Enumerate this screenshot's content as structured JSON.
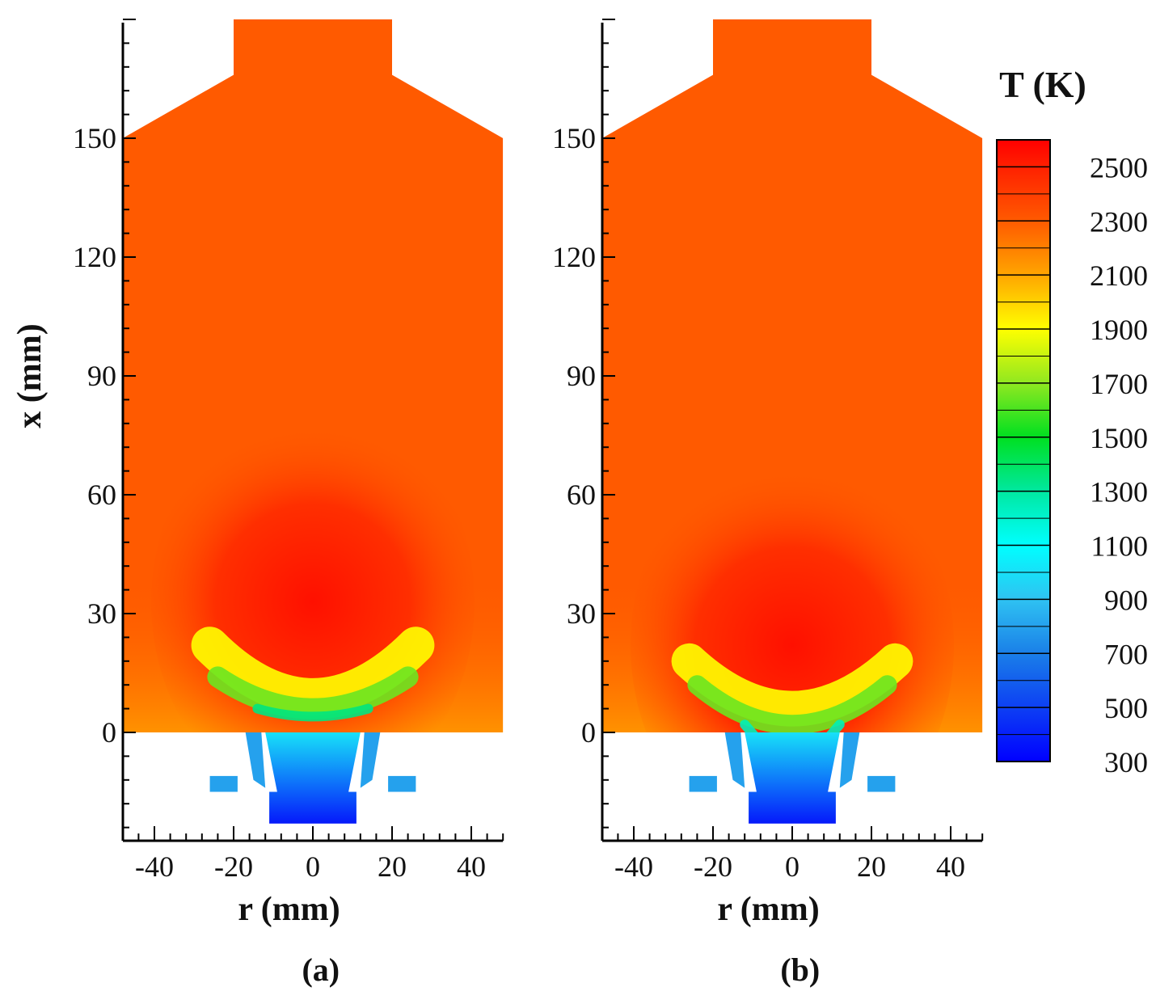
{
  "chart_data": {
    "type": "heatmap",
    "description_kind": "temperature contour, two panels",
    "colorbar": {
      "title": "T (K)",
      "range": [
        300,
        2600
      ],
      "levels": [
        "2500",
        "2300",
        "2100",
        "1900",
        "1700",
        "1500",
        "1300",
        "1100",
        "900",
        "700",
        "500",
        "300"
      ],
      "colors": [
        {
          "value": 300,
          "color": "#0000ff"
        },
        {
          "value": 700,
          "color": "#1a7fe8"
        },
        {
          "value": 900,
          "color": "#2fc2f2"
        },
        {
          "value": 1100,
          "color": "#00ffff"
        },
        {
          "value": 1300,
          "color": "#00e8a0"
        },
        {
          "value": 1500,
          "color": "#00e020"
        },
        {
          "value": 1700,
          "color": "#90e820"
        },
        {
          "value": 1900,
          "color": "#ffff00"
        },
        {
          "value": 2100,
          "color": "#ffa500"
        },
        {
          "value": 2300,
          "color": "#ff5a00"
        },
        {
          "value": 2500,
          "color": "#ff2000"
        },
        {
          "value": 2600,
          "color": "#ff0000"
        }
      ]
    },
    "panels": [
      {
        "label": "(a)",
        "xlabel": "r (mm)",
        "ylabel": "x (mm)",
        "xticks": [
          "-40",
          "-20",
          "0",
          "20",
          "40"
        ],
        "yticks": [
          "0",
          "30",
          "60",
          "90",
          "120",
          "150"
        ],
        "xlim": [
          -48,
          48
        ],
        "ylim": [
          -27,
          180
        ],
        "flame_shape": "bowl",
        "field": {
          "bulk_T": 2300,
          "hot_core": {
            "r": 0,
            "x": 33,
            "T": 2550
          },
          "flame_front_T": 1500,
          "inlet_T": 800
        }
      },
      {
        "label": "(b)",
        "xlabel": "r (mm)",
        "ylabel": "",
        "xticks": [
          "-40",
          "-20",
          "0",
          "20",
          "40"
        ],
        "yticks": [
          "0",
          "30",
          "60",
          "90",
          "120",
          "150"
        ],
        "xlim": [
          -48,
          48
        ],
        "ylim": [
          -27,
          180
        ],
        "flame_shape": "V",
        "field": {
          "bulk_T": 2300,
          "hot_core": {
            "r": 0,
            "x": 22,
            "T": 2550
          },
          "flame_front_T": 1500,
          "inlet_T": 800
        }
      }
    ]
  }
}
